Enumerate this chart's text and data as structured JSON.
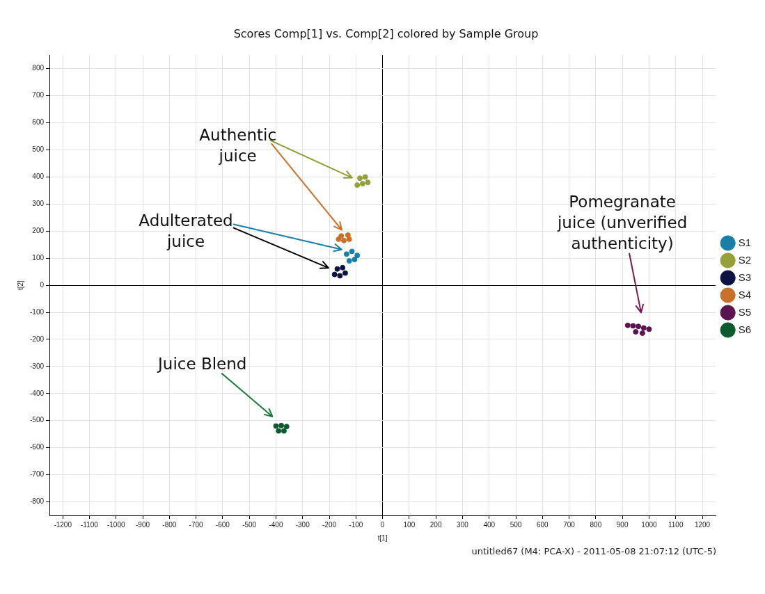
{
  "chart_data": {
    "type": "scatter",
    "title": "Scores Comp[1] vs. Comp[2] colored by Sample Group",
    "xlabel": "t[1]",
    "ylabel": "t[2]",
    "xlim": [
      -1250,
      1250
    ],
    "ylim": [
      -850,
      850
    ],
    "xticks": [
      -1200,
      -1100,
      -1000,
      -900,
      -800,
      -700,
      -600,
      -500,
      -400,
      -300,
      -200,
      -100,
      0,
      100,
      200,
      300,
      400,
      500,
      600,
      700,
      800,
      900,
      1000,
      1100,
      1200
    ],
    "yticks": [
      -800,
      -700,
      -600,
      -500,
      -400,
      -300,
      -200,
      -100,
      0,
      100,
      200,
      300,
      400,
      500,
      600,
      700,
      800
    ],
    "grid": true,
    "legend": "right",
    "marker": "circle",
    "annotations": [
      "Authentic juice",
      "Adulterated juice",
      "Juice Blend",
      "Pomegranate juice (unverified authenticity)",
      "untitled67 (M4: PCA-X) - 2011-05-08 21:07:12 (UTC-5)"
    ],
    "series": [
      {
        "name": "S1",
        "color": "#1a7fa6",
        "x": [
          -135,
          -115,
          -95,
          -125,
          -105
        ],
        "values": [
          115,
          125,
          110,
          90,
          95
        ]
      },
      {
        "name": "S2",
        "color": "#96a03a",
        "x": [
          -95,
          -75,
          -55,
          -85,
          -65
        ],
        "values": [
          370,
          375,
          380,
          395,
          400
        ]
      },
      {
        "name": "S3",
        "color": "#0d1245",
        "x": [
          -180,
          -160,
          -140,
          -170,
          -150
        ],
        "values": [
          40,
          35,
          45,
          60,
          65
        ]
      },
      {
        "name": "S4",
        "color": "#c8702a",
        "x": [
          -165,
          -145,
          -125,
          -155,
          -130
        ],
        "values": [
          170,
          165,
          170,
          182,
          185
        ]
      },
      {
        "name": "S5",
        "color": "#5c1450",
        "x": [
          920,
          940,
          960,
          980,
          1000,
          950,
          975
        ],
        "values": [
          -148,
          -150,
          -152,
          -158,
          -162,
          -172,
          -177
        ]
      },
      {
        "name": "S6",
        "color": "#0b5a30",
        "x": [
          -400,
          -380,
          -360,
          -390,
          -370
        ],
        "values": [
          -520,
          -518,
          -522,
          -538,
          -538
        ]
      }
    ]
  }
}
